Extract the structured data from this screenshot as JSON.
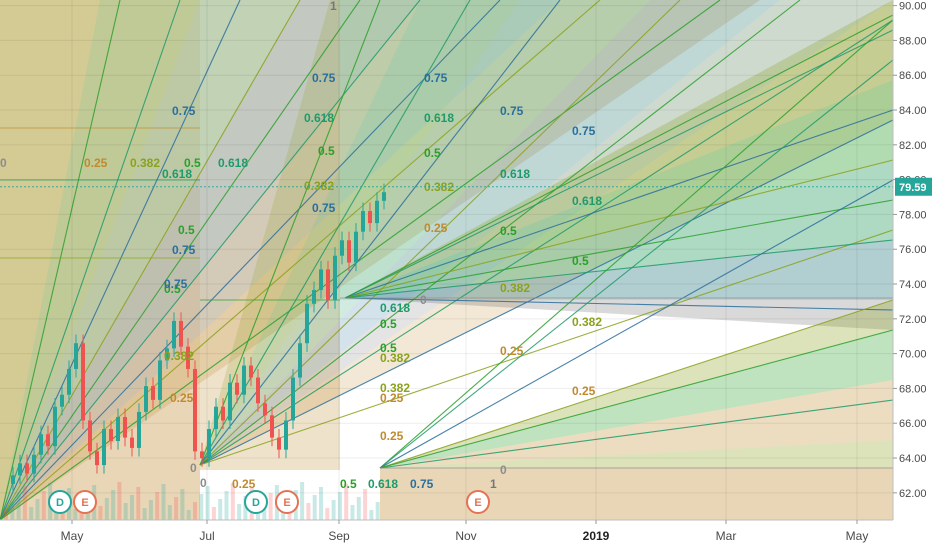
{
  "chart_data": {
    "type": "line",
    "title": "",
    "xlabel": "",
    "ylabel": "",
    "x_ticks": [
      "May",
      "Jul",
      "Sep",
      "Nov",
      "2019",
      "Mar",
      "May"
    ],
    "x_ticks_bold": [
      "2019"
    ],
    "y_ticks": [
      62,
      64,
      66,
      68,
      70,
      72,
      74,
      76,
      78,
      80,
      82,
      84,
      86,
      88,
      90
    ],
    "y_tick_labels": [
      "62.00",
      "64.00",
      "66.00",
      "68.00",
      "70.00",
      "72.00",
      "74.00",
      "76.00",
      "78.00",
      "80.00",
      "82.00",
      "84.00",
      "86.00",
      "88.00",
      "90.00"
    ],
    "ylim": [
      60.2,
      90.5
    ],
    "last_price": 79.59,
    "last_price_label": "79.59",
    "last_price_color": "#26a69a",
    "series": [
      {
        "values": [
          62.3,
          62.8,
          63.5,
          62.9,
          64.0,
          65.2,
          64.5,
          66.8,
          67.5,
          69.0,
          70.5,
          66.0,
          64.2,
          63.4,
          65.5,
          64.8,
          66.2,
          65.0,
          64.4,
          66.5,
          68.0,
          67.2,
          69.5,
          70.2,
          71.8,
          70.3,
          69.0,
          64.2,
          63.8,
          65.5,
          66.8,
          66.0,
          68.2,
          67.5,
          69.2,
          68.5,
          67.0,
          66.3,
          65.0,
          64.3,
          66.0,
          68.5,
          70.5,
          72.8,
          73.6,
          74.8,
          73.0,
          75.6,
          76.5,
          75.2,
          77.0,
          78.2,
          77.5,
          78.8,
          79.3
        ]
      }
    ],
    "events": [
      "D",
      "E",
      "D",
      "E",
      "E"
    ],
    "fib_labels": [
      "0",
      "0.25",
      "0.382",
      "0.5",
      "0.618",
      "0.75",
      "1"
    ],
    "colors": {
      "level_0": "#8c8c8c",
      "level_0.25": "#c08a2e",
      "level_0.382": "#8aa21c",
      "level_0.5": "#2aa02a",
      "level_0.618": "#1f9a6a",
      "level_0.75": "#2a6f9c",
      "level_1": "#777777",
      "candle_up": "#26a69a",
      "candle_down": "#ef5350",
      "dividend": "#26a69a",
      "earnings": "#e57254"
    }
  }
}
